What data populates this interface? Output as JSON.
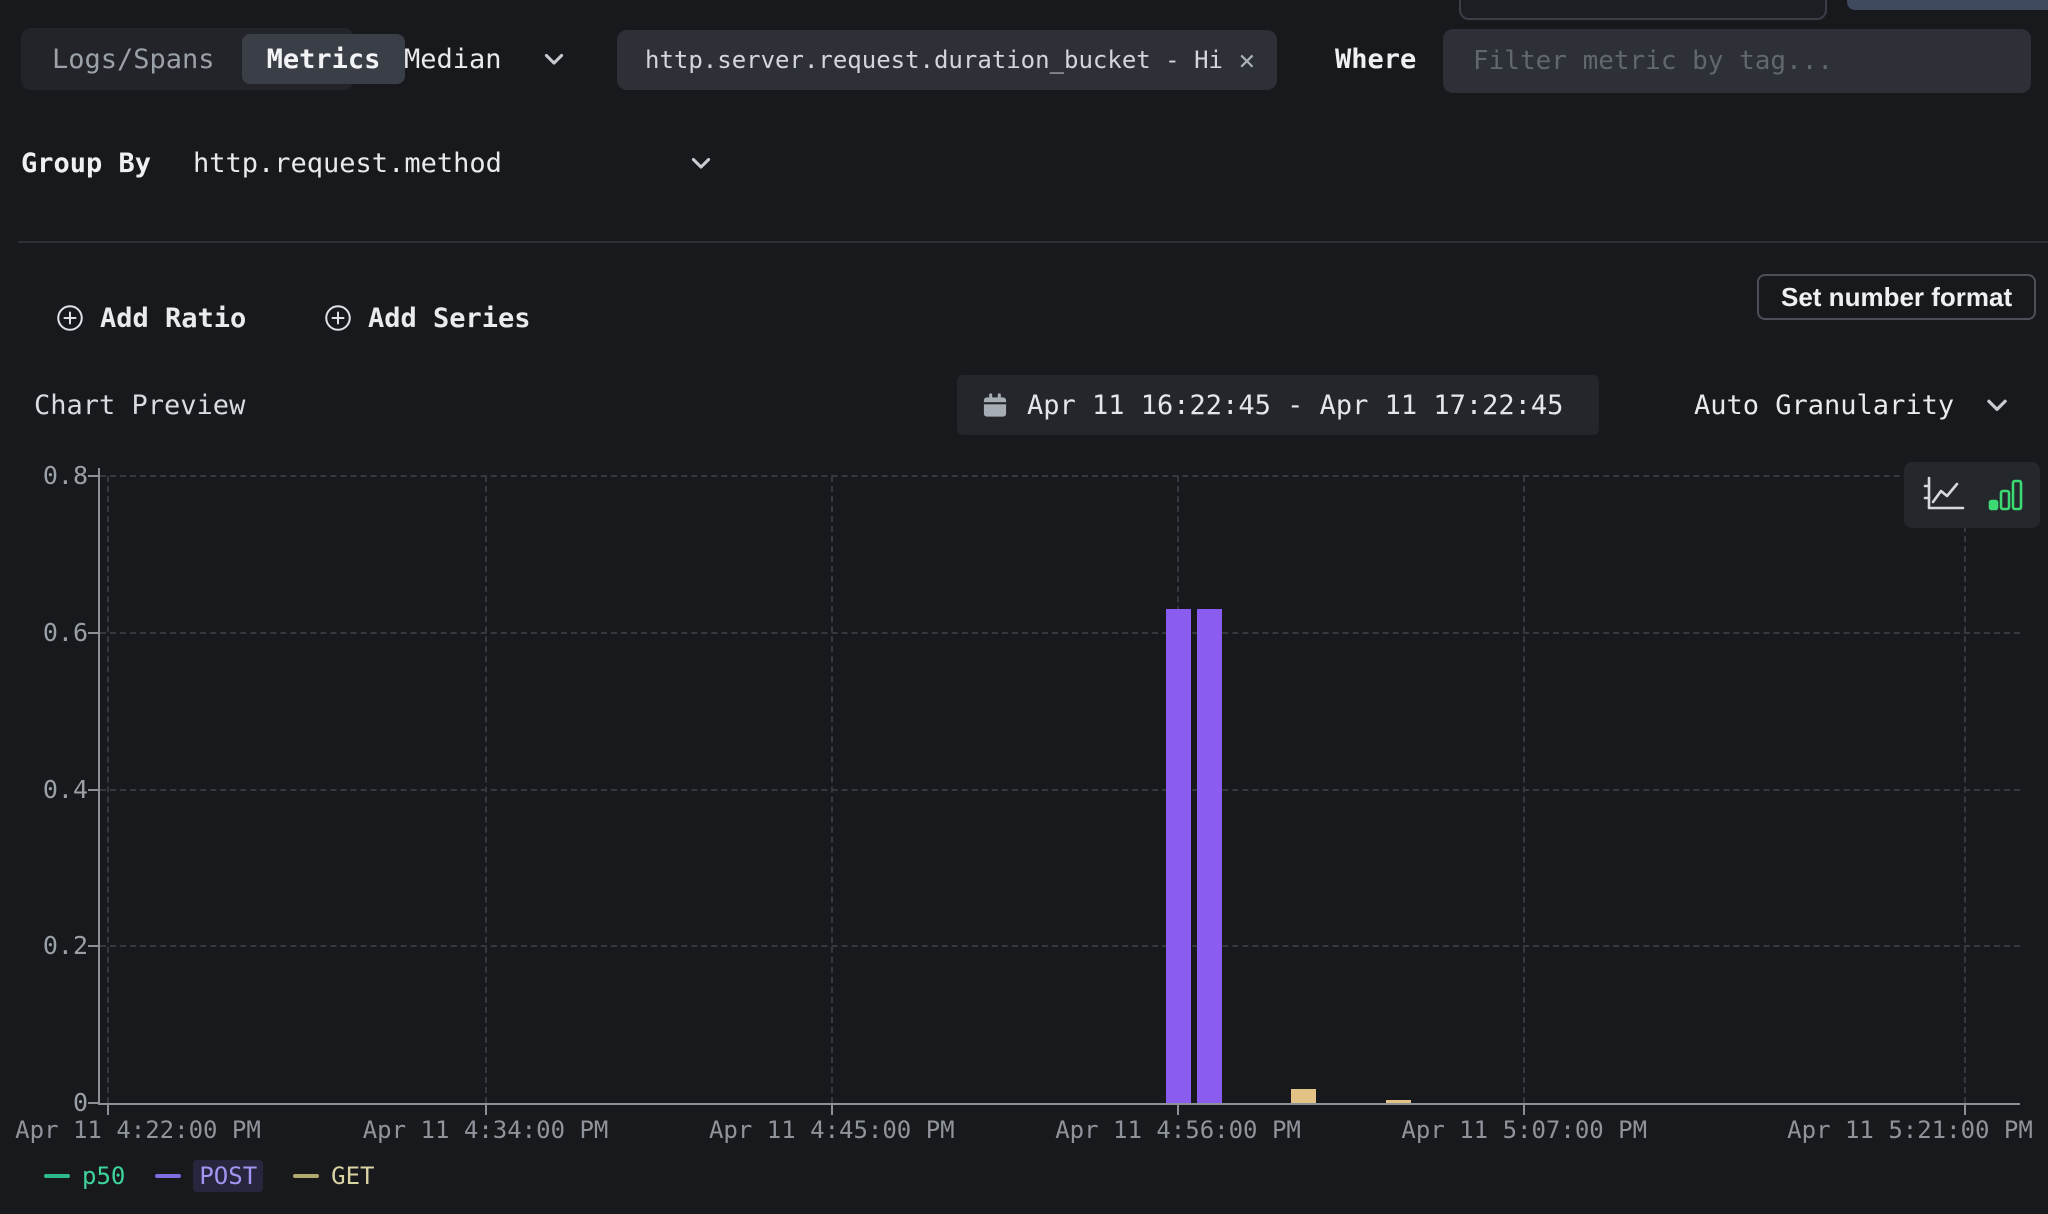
{
  "query": {
    "source_toggle": {
      "options": [
        "Logs/Spans",
        "Metrics"
      ],
      "active": "Metrics"
    },
    "aggregation": {
      "value": "Median"
    },
    "metric": {
      "value": "http.server.request.duration_bucket - Hi"
    },
    "where_label": "Where",
    "where_filter": {
      "placeholder": "Filter metric by tag..."
    },
    "group_by": {
      "label": "Group By",
      "value": "http.request.method"
    }
  },
  "actions": {
    "add_ratio": "Add Ratio",
    "add_series": "Add Series",
    "set_number_format": "Set number format"
  },
  "chart_header": {
    "title": "Chart Preview",
    "date_range": "Apr 11 16:22:45 - Apr 11 17:22:45",
    "granularity": "Auto Granularity",
    "chart_type_active": "bar"
  },
  "colors": {
    "background": "#17191d",
    "input_background": "#2d3036",
    "accent_bar_post": "#8a5cf0",
    "accent_bar_get": "#e3c286",
    "active_chart_icon": "#3dd973",
    "axis": "#8c9197",
    "gridline": "#34383f"
  },
  "chart_data": {
    "type": "bar",
    "title": "Chart Preview",
    "xlabel": "",
    "ylabel": "",
    "grid": "dashed",
    "legend_position": "bottom-left",
    "x_axis": {
      "window_start": "Apr 11 16:22:45",
      "window_end": "Apr 11 17:22:45",
      "domain_minutes": [
        0,
        61
      ],
      "ticks": [
        {
          "label": "Apr 11 4:22:00 PM",
          "minute": 0.25
        },
        {
          "label": "Apr 11 4:34:00 PM",
          "minute": 12.25
        },
        {
          "label": "Apr 11 4:45:00 PM",
          "minute": 23.25
        },
        {
          "label": "Apr 11 4:56:00 PM",
          "minute": 34.25
        },
        {
          "label": "Apr 11 5:07:00 PM",
          "minute": 45.25
        },
        {
          "label": "Apr 11 5:21:00 PM",
          "minute": 59.25
        }
      ]
    },
    "y_axis": {
      "ticks": [
        "0",
        "0.2",
        "0.4",
        "0.6",
        "0.8"
      ],
      "tick_values": [
        0,
        0.2,
        0.4,
        0.6,
        0.8
      ],
      "range": [
        0,
        0.8
      ]
    },
    "series": [
      {
        "name": "p50",
        "type": "line",
        "color": "#2eb98c",
        "points": []
      },
      {
        "name": "POST",
        "type": "bar",
        "color": "#8a5cf0",
        "points": [
          {
            "time": "Apr 11 4:56:00 PM",
            "minute": 34.25,
            "value": 0.63
          },
          {
            "time": "Apr 11 4:57:00 PM",
            "minute": 35.25,
            "value": 0.63
          }
        ]
      },
      {
        "name": "GET",
        "type": "bar",
        "color": "#e3c286",
        "points": [
          {
            "time": "Apr 11 5:00:00 PM",
            "minute": 38.25,
            "value": 0.018
          },
          {
            "time": "Apr 11 5:03:00 PM",
            "minute": 41.25,
            "value": 0.004
          }
        ]
      }
    ],
    "legend": [
      {
        "label": "p50",
        "dash_color": "#2eb98c",
        "text_color": "#3ed49c",
        "highlighted": false
      },
      {
        "label": "POST",
        "dash_color": "#7f6ce0",
        "text_color": "#a295f2",
        "highlighted": true
      },
      {
        "label": "GET",
        "dash_color": "#b0a96e",
        "text_color": "#d9d3a4",
        "highlighted": false
      }
    ]
  }
}
